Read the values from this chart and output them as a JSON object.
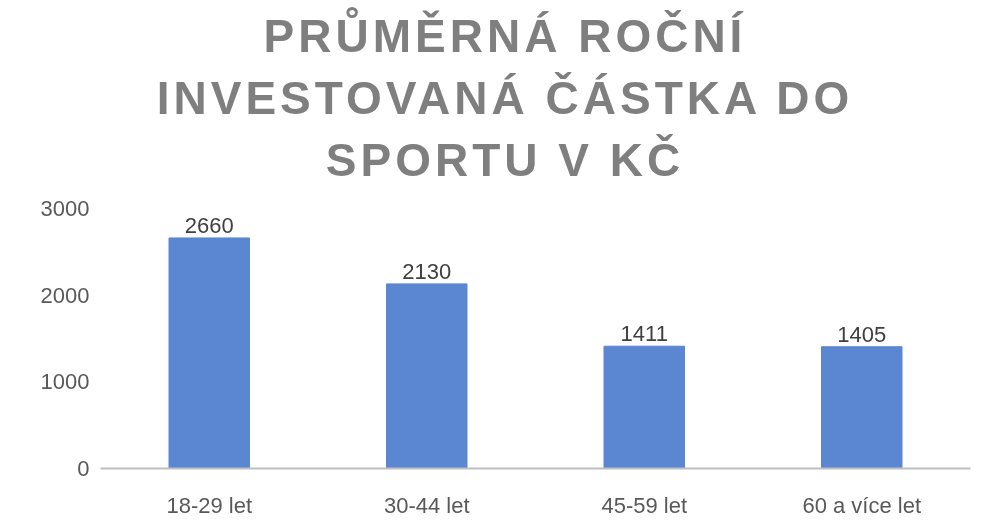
{
  "chart_data": {
    "type": "bar",
    "title": "PRŮMĚRNÁ ROČNÍ INVESTOVANÁ ČÁSTKA DO SPORTU V KČ",
    "categories": [
      "18-29 let",
      "30-44 let",
      "45-59 let",
      "60 a více let"
    ],
    "values": [
      2660,
      2130,
      1411,
      1405
    ],
    "color": "#5a86d2",
    "ylim": [
      0,
      3000
    ],
    "yticks": [
      0,
      1000,
      2000,
      3000
    ],
    "grid": false,
    "data_labels": true
  }
}
